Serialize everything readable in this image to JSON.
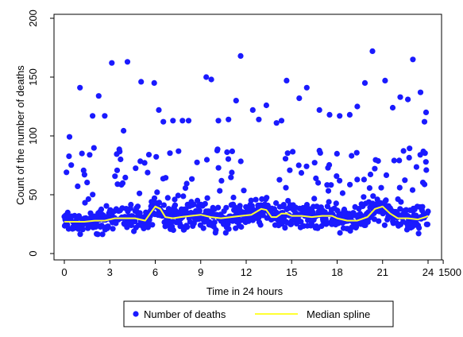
{
  "chart_data": {
    "type": "scatter",
    "title": "",
    "xlabel": "Time in 24 hours",
    "ylabel": "Count of the number of deaths",
    "xlim": [
      0,
      1500
    ],
    "ylim": [
      0,
      200
    ],
    "x_ticks": [
      {
        "value": 0,
        "label": "0"
      },
      {
        "value": 180,
        "label": "3"
      },
      {
        "value": 360,
        "label": "6"
      },
      {
        "value": 540,
        "label": "9"
      },
      {
        "value": 720,
        "label": "12"
      },
      {
        "value": 900,
        "label": "15"
      },
      {
        "value": 1080,
        "label": "18"
      },
      {
        "value": 1260,
        "label": "21"
      },
      {
        "value": 1440,
        "label": "24"
      },
      {
        "value": 1500,
        "label": "1500"
      }
    ],
    "y_ticks": [
      {
        "value": 0,
        "label": "0"
      },
      {
        "value": 50,
        "label": "50"
      },
      {
        "value": 100,
        "label": "100"
      },
      {
        "value": 150,
        "label": "150"
      },
      {
        "value": 200,
        "label": "200"
      }
    ],
    "grid": false,
    "legend_position": "bottom",
    "colors": {
      "points": "#1a1aff",
      "spline": "#ffff33",
      "frame": "#000000"
    },
    "series": [
      {
        "name": "Number of deaths",
        "kind": "scatter",
        "notes": "approx. one observation per minute; dense band at 20-40 deaths with sparse scatter up to ~170",
        "outliers": [
          {
            "x": 62,
            "y": 141
          },
          {
            "x": 112,
            "y": 117
          },
          {
            "x": 136,
            "y": 134
          },
          {
            "x": 160,
            "y": 117
          },
          {
            "x": 188,
            "y": 162
          },
          {
            "x": 250,
            "y": 163
          },
          {
            "x": 304,
            "y": 146
          },
          {
            "x": 356,
            "y": 145
          },
          {
            "x": 374,
            "y": 122
          },
          {
            "x": 392,
            "y": 112
          },
          {
            "x": 430,
            "y": 113
          },
          {
            "x": 468,
            "y": 113
          },
          {
            "x": 492,
            "y": 113
          },
          {
            "x": 562,
            "y": 150
          },
          {
            "x": 582,
            "y": 148
          },
          {
            "x": 610,
            "y": 113
          },
          {
            "x": 650,
            "y": 114
          },
          {
            "x": 680,
            "y": 130
          },
          {
            "x": 698,
            "y": 168
          },
          {
            "x": 746,
            "y": 122
          },
          {
            "x": 770,
            "y": 114
          },
          {
            "x": 800,
            "y": 126
          },
          {
            "x": 840,
            "y": 111
          },
          {
            "x": 860,
            "y": 113
          },
          {
            "x": 880,
            "y": 147
          },
          {
            "x": 930,
            "y": 132
          },
          {
            "x": 960,
            "y": 141
          },
          {
            "x": 1010,
            "y": 122
          },
          {
            "x": 1050,
            "y": 118
          },
          {
            "x": 1090,
            "y": 117
          },
          {
            "x": 1130,
            "y": 118
          },
          {
            "x": 1160,
            "y": 125
          },
          {
            "x": 1190,
            "y": 145
          },
          {
            "x": 1220,
            "y": 172
          },
          {
            "x": 1270,
            "y": 147
          },
          {
            "x": 1300,
            "y": 124
          },
          {
            "x": 1330,
            "y": 133
          },
          {
            "x": 1360,
            "y": 131
          },
          {
            "x": 1380,
            "y": 165
          },
          {
            "x": 1410,
            "y": 137
          },
          {
            "x": 1426,
            "y": 112
          },
          {
            "x": 1432,
            "y": 120
          }
        ]
      },
      {
        "name": "Median spline",
        "kind": "line",
        "x": [
          0,
          40,
          80,
          120,
          160,
          200,
          240,
          280,
          320,
          340,
          360,
          380,
          400,
          430,
          460,
          500,
          540,
          580,
          620,
          660,
          700,
          740,
          780,
          800,
          820,
          840,
          860,
          880,
          900,
          940,
          980,
          1020,
          1060,
          1080,
          1120,
          1160,
          1200,
          1230,
          1260,
          1290,
          1320,
          1360,
          1400,
          1430,
          1440
        ],
        "y": [
          27,
          27,
          27,
          28,
          28,
          30,
          30,
          30,
          28,
          34,
          40,
          38,
          31,
          30,
          31,
          32,
          33,
          31,
          30,
          31,
          32,
          33,
          38,
          37,
          31,
          31,
          34,
          34,
          32,
          32,
          31,
          32,
          32,
          30,
          28,
          28,
          31,
          38,
          40,
          34,
          30,
          30,
          29,
          31,
          32
        ]
      }
    ]
  }
}
